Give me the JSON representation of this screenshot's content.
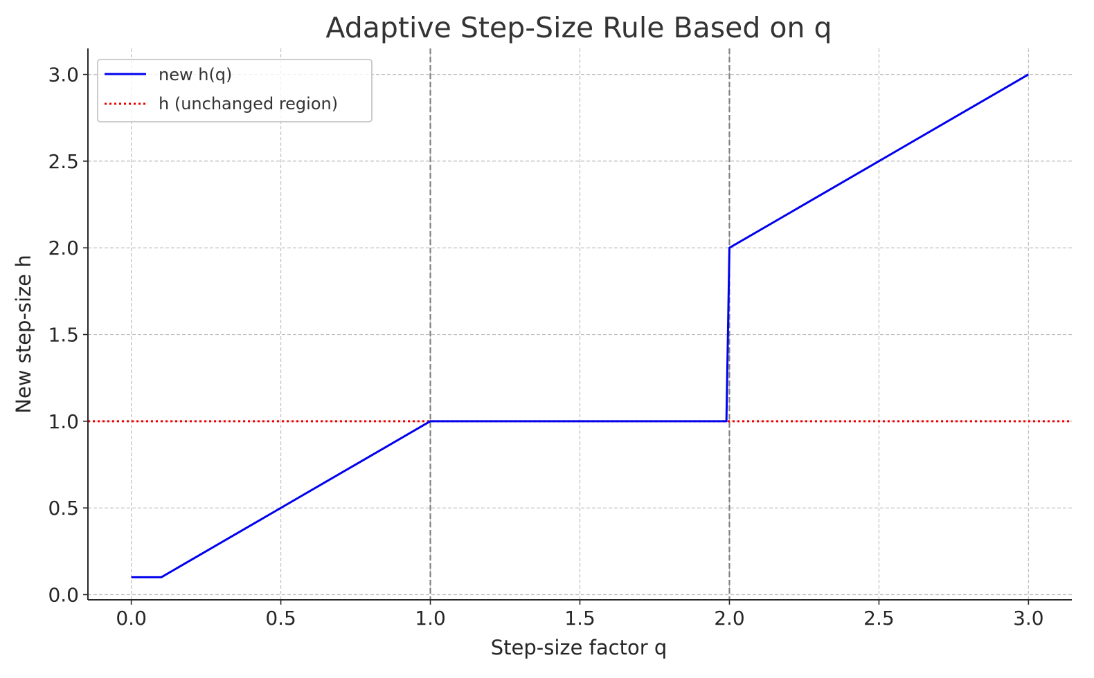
{
  "chart_data": {
    "type": "line",
    "title": "Adaptive Step-Size Rule Based on q",
    "xlabel": "Step-size factor q",
    "ylabel": "New step-size h",
    "xlim": [
      -0.145,
      3.145
    ],
    "ylim": [
      -0.03,
      3.15
    ],
    "xticks": [
      0.0,
      0.5,
      1.0,
      1.5,
      2.0,
      2.5,
      3.0
    ],
    "xtick_labels": [
      "0.0",
      "0.5",
      "1.0",
      "1.5",
      "2.0",
      "2.5",
      "3.0"
    ],
    "yticks": [
      0.0,
      0.5,
      1.0,
      1.5,
      2.0,
      2.5,
      3.0
    ],
    "ytick_labels": [
      "0.0",
      "0.5",
      "1.0",
      "1.5",
      "2.0",
      "2.5",
      "3.0"
    ],
    "grid": true,
    "legend_position": "top-left",
    "series": [
      {
        "name": "new h(q)",
        "color": "#0000ee",
        "style": "solid",
        "x": [
          0.0,
          0.1,
          1.0,
          1.99,
          2.0,
          3.0
        ],
        "y": [
          0.1,
          0.1,
          1.0,
          1.0,
          2.0,
          3.0
        ]
      },
      {
        "name": "h (unchanged region)",
        "color": "#ee0000",
        "style": "dotted",
        "x": [
          -0.145,
          3.145
        ],
        "y": [
          1.0,
          1.0
        ]
      }
    ],
    "vlines": [
      {
        "x": 1.0,
        "color": "#808080",
        "style": "dashed"
      },
      {
        "x": 2.0,
        "color": "#808080",
        "style": "dashed"
      }
    ]
  }
}
